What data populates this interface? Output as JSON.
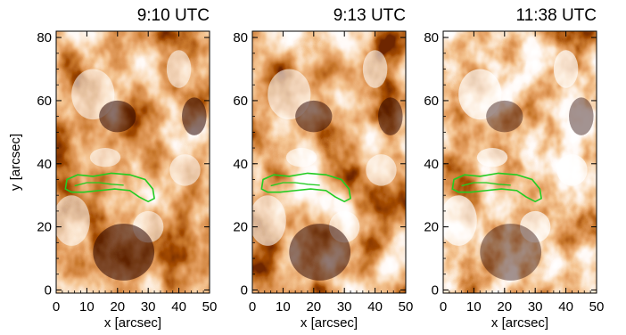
{
  "figure": {
    "ylabel": "y [arcsec]",
    "xlabel": "x [arcsec]",
    "colormap": [
      "#2a0400",
      "#5e1200",
      "#9a3208",
      "#c85a1e",
      "#e8904a",
      "#f8c89a",
      "#ffffff"
    ],
    "contour_color": "#22cc22"
  },
  "chart_data": [
    {
      "type": "heatmap",
      "title": "9:10 UTC",
      "xlabel": "x [arcsec]",
      "ylabel": "y [arcsec]",
      "xlim": [
        0,
        50
      ],
      "ylim": [
        -1,
        82
      ],
      "xticks": [
        0,
        10,
        20,
        30,
        40,
        50
      ],
      "yticks": [
        0,
        20,
        40,
        60,
        80
      ],
      "brightness_offset": 0.0
    },
    {
      "type": "heatmap",
      "title": "9:13 UTC",
      "xlabel": "x [arcsec]",
      "ylabel": "",
      "xlim": [
        0,
        50
      ],
      "ylim": [
        -1,
        82
      ],
      "xticks": [
        0,
        10,
        20,
        30,
        40,
        50
      ],
      "yticks": [
        0,
        20,
        40,
        60,
        80
      ],
      "brightness_offset": 0.03
    },
    {
      "type": "heatmap",
      "title": "11:38 UTC",
      "xlabel": "x [arcsec]",
      "ylabel": "",
      "xlim": [
        0,
        50
      ],
      "ylim": [
        -1,
        82
      ],
      "xticks": [
        0,
        10,
        20,
        30,
        40,
        50
      ],
      "yticks": [
        0,
        20,
        40,
        60,
        80
      ],
      "brightness_offset": 0.12
    }
  ],
  "contour": {
    "outer": [
      [
        3,
        32
      ],
      [
        3.5,
        35
      ],
      [
        7,
        36.5
      ],
      [
        12,
        36
      ],
      [
        18,
        37
      ],
      [
        24,
        36.5
      ],
      [
        29,
        35
      ],
      [
        31.5,
        32
      ],
      [
        32,
        29
      ],
      [
        30,
        28
      ],
      [
        27,
        29.5
      ],
      [
        24,
        31.5
      ],
      [
        19,
        32
      ],
      [
        14,
        31.5
      ],
      [
        9,
        31
      ],
      [
        5,
        31
      ]
    ],
    "inner": [
      [
        6,
        33
      ],
      [
        10,
        34
      ],
      [
        14,
        34
      ],
      [
        18,
        33.5
      ],
      [
        22,
        33.2
      ]
    ]
  }
}
